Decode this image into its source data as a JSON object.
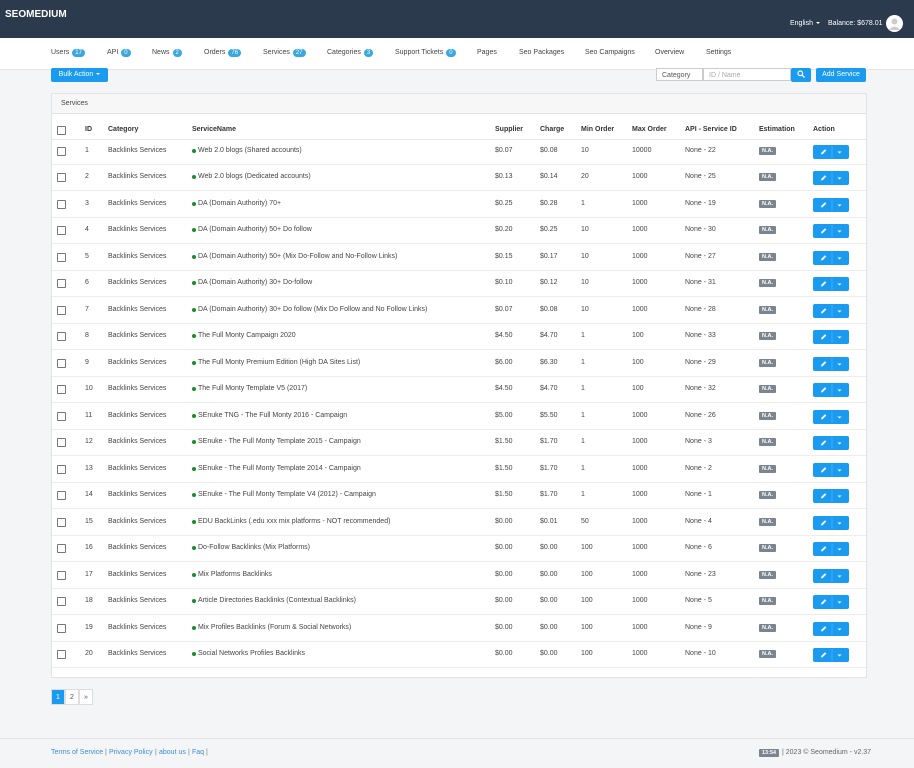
{
  "header": {
    "brand": "SEOMEDIUM",
    "language": "English",
    "balance": "Balance: $678.01"
  },
  "nav": [
    {
      "label": "Users",
      "badge": "17"
    },
    {
      "label": "API",
      "badge": "0"
    },
    {
      "label": "News",
      "badge": "2"
    },
    {
      "label": "Orders",
      "badge": "76"
    },
    {
      "label": "Services",
      "badge": "27"
    },
    {
      "label": "Categories",
      "badge": "3"
    },
    {
      "label": "Support Tickets",
      "badge": "0"
    },
    {
      "label": "Pages"
    },
    {
      "label": "Seo Packages"
    },
    {
      "label": "Seo Campaigns"
    },
    {
      "label": "Overview"
    },
    {
      "label": "Settings"
    }
  ],
  "toolbar": {
    "bulk_action": "Bulk Action",
    "category_select": "Category",
    "search_placeholder": "ID / Name",
    "add_service": "Add Service"
  },
  "panel": {
    "title": "Services"
  },
  "table": {
    "columns": [
      "ID",
      "Category",
      "ServiceName",
      "Supplier",
      "Charge",
      "Min Order",
      "Max Order",
      "API - Service ID",
      "Estimation",
      "Action"
    ],
    "rows": [
      [
        1,
        "Backlinks Services",
        "Web 2.0 blogs (Shared accounts)",
        "$0.07",
        "$0.08",
        10,
        10000,
        "None - 22",
        "N.A."
      ],
      [
        2,
        "Backlinks Services",
        "Web 2.0 blogs (Dedicated accounts)",
        "$0.13",
        "$0.14",
        20,
        1000,
        "None - 25",
        "N.A."
      ],
      [
        3,
        "Backlinks Services",
        "DA (Domain Authority) 70+",
        "$0.25",
        "$0.28",
        1,
        1000,
        "None - 19",
        "N.A."
      ],
      [
        4,
        "Backlinks Services",
        "DA (Domain Authority) 50+ Do follow",
        "$0.20",
        "$0.25",
        10,
        1000,
        "None - 30",
        "N.A."
      ],
      [
        5,
        "Backlinks Services",
        "DA (Domain Authority) 50+ (Mix Do-Follow and No-Follow Links)",
        "$0.15",
        "$0.17",
        10,
        1000,
        "None - 27",
        "N.A."
      ],
      [
        6,
        "Backlinks Services",
        "DA (Domain Authority) 30+ Do-follow",
        "$0.10",
        "$0.12",
        10,
        1000,
        "None - 31",
        "N.A."
      ],
      [
        7,
        "Backlinks Services",
        "DA (Domain Authority) 30+ Do follow (Mix Do Follow and No Follow Links)",
        "$0.07",
        "$0.08",
        10,
        1000,
        "None - 28",
        "N.A."
      ],
      [
        8,
        "Backlinks Services",
        "The Full Monty Campaign 2020",
        "$4.50",
        "$4.70",
        1,
        100,
        "None - 33",
        "N.A."
      ],
      [
        9,
        "Backlinks Services",
        "The Full Monty Premium Edition (High DA Sites List)",
        "$6.00",
        "$6.30",
        1,
        100,
        "None - 29",
        "N.A."
      ],
      [
        10,
        "Backlinks Services",
        "The Full Monty Template V5 (2017)",
        "$4.50",
        "$4.70",
        1,
        100,
        "None - 32",
        "N.A."
      ],
      [
        11,
        "Backlinks Services",
        "SEnuke TNG - The Full Monty 2016 - Campaign",
        "$5.00",
        "$5.50",
        1,
        1000,
        "None - 26",
        "N.A."
      ],
      [
        12,
        "Backlinks Services",
        "SEnuke - The Full Monty Template 2015 - Campaign",
        "$1.50",
        "$1.70",
        1,
        1000,
        "None - 3",
        "N.A."
      ],
      [
        13,
        "Backlinks Services",
        "SEnuke - The Full Monty Template 2014 - Campaign",
        "$1.50",
        "$1.70",
        1,
        1000,
        "None - 2",
        "N.A."
      ],
      [
        14,
        "Backlinks Services",
        "SEnuke - The Full Monty Template V4 (2012) - Campaign",
        "$1.50",
        "$1.70",
        1,
        1000,
        "None - 1",
        "N.A."
      ],
      [
        15,
        "Backlinks Services",
        "EDU BackLinks (.edu xxx mix platforms - NOT recommended)",
        "$0.00",
        "$0.01",
        50,
        1000,
        "None - 4",
        "N.A."
      ],
      [
        16,
        "Backlinks Services",
        "Do-Follow Backlinks (Mix Platforms)",
        "$0.00",
        "$0.00",
        100,
        1000,
        "None - 6",
        "N.A."
      ],
      [
        17,
        "Backlinks Services",
        "Mix Platforms Backlinks",
        "$0.00",
        "$0.00",
        100,
        1000,
        "None - 23",
        "N.A."
      ],
      [
        18,
        "Backlinks Services",
        "Article Directories Backlinks (Contextual Backlinks)",
        "$0.00",
        "$0.00",
        100,
        1000,
        "None - 5",
        "N.A."
      ],
      [
        19,
        "Backlinks Services",
        "Mix Profiles Backlinks (Forum & Social Networks)",
        "$0.00",
        "$0.00",
        100,
        1000,
        "None - 9",
        "N.A."
      ],
      [
        20,
        "Backlinks Services",
        "Social Networks Profiles Backlinks",
        "$0.00",
        "$0.00",
        100,
        1000,
        "None - 10",
        "N.A."
      ]
    ]
  },
  "pagination": [
    "1",
    "2",
    "»"
  ],
  "footer": {
    "links": [
      "Terms of Service",
      "Privacy Policy",
      "about us",
      "Faq"
    ],
    "separator": "|",
    "time": "13:54",
    "copyright": "| 2023 © Seomedium - v2.37"
  }
}
